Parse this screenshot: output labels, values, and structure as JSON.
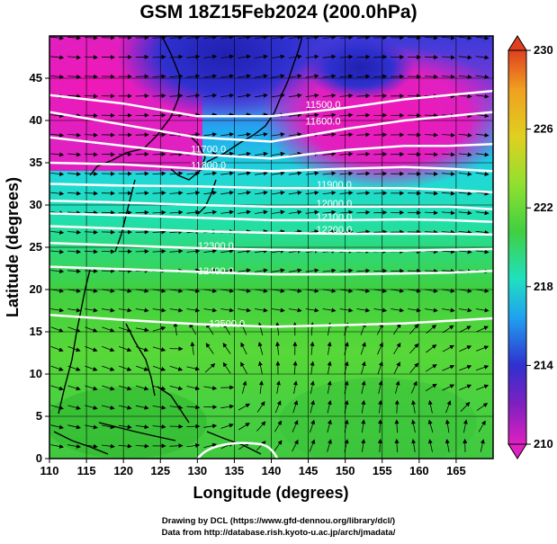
{
  "title": "GSM 18Z15Feb2024 (200.0hPa)",
  "xaxis": {
    "label": "Longitude (degrees)",
    "ticks": [
      110,
      115,
      120,
      125,
      130,
      135,
      140,
      145,
      150,
      155,
      160,
      165
    ]
  },
  "yaxis": {
    "label": "Latitude  (degrees)",
    "ticks": [
      0,
      5,
      10,
      15,
      20,
      25,
      30,
      35,
      40,
      45
    ]
  },
  "colorbar": {
    "labels": [
      "230",
      "226",
      "222",
      "218",
      "214",
      "210"
    ],
    "min": 210,
    "max": 230,
    "colors": [
      "#e020c0",
      "#4030d0",
      "#20a0f0",
      "#20e0c0",
      "#40d040",
      "#c0e020",
      "#f0b020",
      "#e04020"
    ]
  },
  "contour_labels": [
    {
      "text": "11500.0",
      "lon": 147,
      "lat": 41.5
    },
    {
      "text": "11600.0",
      "lon": 147,
      "lat": 39.5
    },
    {
      "text": "11700.0",
      "lon": 131.5,
      "lat": 36.2
    },
    {
      "text": "11800.0",
      "lon": 131.5,
      "lat": 34.3
    },
    {
      "text": "11900.0",
      "lon": 148.5,
      "lat": 32.0
    },
    {
      "text": "12000.0",
      "lon": 148.5,
      "lat": 29.8
    },
    {
      "text": "12100.0",
      "lon": 148.5,
      "lat": 28.2
    },
    {
      "text": "12200.0",
      "lon": 148.5,
      "lat": 26.7
    },
    {
      "text": "12300.0",
      "lon": 132.5,
      "lat": 24.8
    },
    {
      "text": "12400.0",
      "lon": 132.5,
      "lat": 21.8
    },
    {
      "text": "12500.0",
      "lon": 134,
      "lat": 15.6
    }
  ],
  "footer": {
    "line1": "Drawing by DCL (https://www.gfd-dennou.org/library/dcl/)",
    "line2": "Data from http://database.rish.kyoto-u.ac.jp/arch/jmadata/"
  }
}
